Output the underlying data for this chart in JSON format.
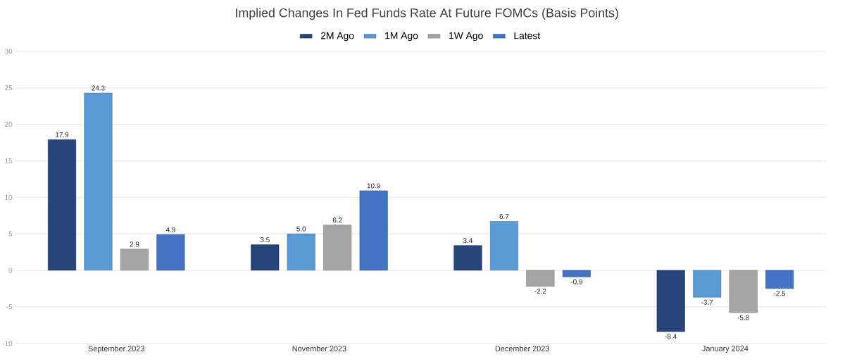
{
  "chart_data": {
    "type": "bar",
    "title": "Implied Changes In Fed Funds Rate At Future FOMCs (Basis Points)",
    "categories": [
      "September 2023",
      "November 2023",
      "December 2023",
      "January 2024"
    ],
    "series": [
      {
        "name": "2M Ago",
        "color": "#264478",
        "values": [
          17.9,
          3.5,
          3.4,
          -8.4
        ],
        "value_labels": [
          "17.9",
          "3.5",
          "3.4",
          "-8.4"
        ]
      },
      {
        "name": "1M Ago",
        "color": "#5b9bd5",
        "values": [
          24.3,
          5.0,
          6.7,
          -3.7
        ],
        "value_labels": [
          "24.3",
          "5.0",
          "6.7",
          "-3.7"
        ]
      },
      {
        "name": "1W Ago",
        "color": "#a5a5a5",
        "values": [
          2.9,
          6.2,
          -2.2,
          -5.8
        ],
        "value_labels": [
          "2.9",
          "6.2",
          "-2.2",
          "-5.8"
        ]
      },
      {
        "name": "Latest",
        "color": "#4472c4",
        "values": [
          4.9,
          10.9,
          -0.9,
          -2.5
        ],
        "value_labels": [
          "4.9",
          "10.9",
          "-0.9",
          "-2.5"
        ]
      }
    ],
    "ylim": [
      -10,
      30
    ],
    "yticks": [
      -10,
      -5,
      0,
      5,
      10,
      15,
      20,
      25,
      30
    ],
    "grid": "y",
    "legend": "top"
  }
}
